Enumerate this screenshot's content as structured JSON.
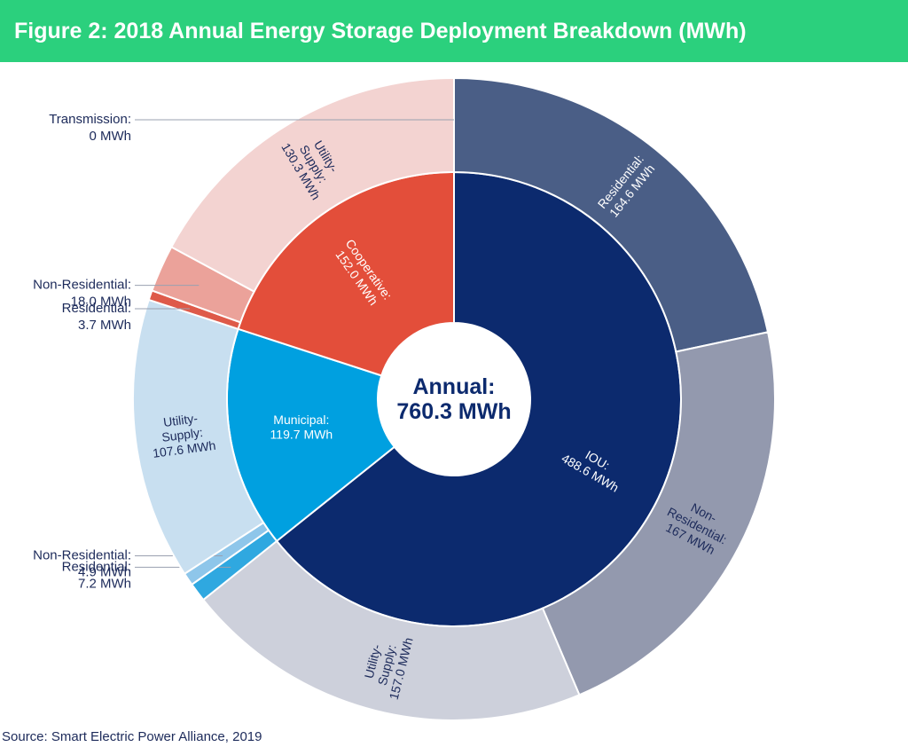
{
  "title": "Figure 2: 2018 Annual Energy Storage Deployment Breakdown (MWh)",
  "source": "Source: Smart Electric Power Alliance, 2019",
  "colors": {
    "header": "#2bd07d",
    "text_dark": "#1c2a5a"
  },
  "chart_data": {
    "type": "sunburst",
    "center_label": [
      "Annual:",
      "760.3 MWh"
    ],
    "total": 760.3,
    "inner_ring": [
      {
        "name": "IOU",
        "value": 488.6,
        "label": [
          "IOU:",
          "488.6 MWh"
        ],
        "color": "#0c2a6e"
      },
      {
        "name": "Municipal",
        "value": 119.7,
        "label": [
          "Municipal:",
          "119.7 MWh"
        ],
        "color": "#00a0e0"
      },
      {
        "name": "Cooperative",
        "value": 152.0,
        "label": [
          "Cooperative:",
          "152.0 MWh"
        ],
        "color": "#e34e3a"
      }
    ],
    "outer_ring": [
      {
        "parent": "IOU",
        "name": "Residential",
        "value": 164.6,
        "label": [
          "Residential:",
          "164.6 MWh"
        ],
        "color": "#4a5e86",
        "label_position": "inside"
      },
      {
        "parent": "IOU",
        "name": "Non-Residential",
        "value": 167.0,
        "label": [
          "Non-",
          "Residential:",
          "167 MWh"
        ],
        "color": "#9399ae",
        "label_position": "inside"
      },
      {
        "parent": "IOU",
        "name": "Utility-Supply",
        "value": 157.0,
        "label": [
          "Utility-",
          "Supply:",
          "157.0 MWh"
        ],
        "color": "#cdd0db",
        "label_position": "inside"
      },
      {
        "parent": "Municipal",
        "name": "Residential",
        "value": 7.2,
        "label": [
          "Residential:",
          "7.2 MWh"
        ],
        "color": "#2fa8e0",
        "label_position": "outside"
      },
      {
        "parent": "Municipal",
        "name": "Non-Residential",
        "value": 4.9,
        "label": [
          "Non-Residential:",
          "4.9 MWh"
        ],
        "color": "#8ec6ea",
        "label_position": "outside"
      },
      {
        "parent": "Municipal",
        "name": "Utility-Supply",
        "value": 107.6,
        "label": [
          "Utility-",
          "Supply:",
          "107.6 MWh"
        ],
        "color": "#c8dff0",
        "label_position": "inside"
      },
      {
        "parent": "Cooperative",
        "name": "Residential",
        "value": 3.7,
        "label": [
          "Residential:",
          "3.7 MWh"
        ],
        "color": "#de5a49",
        "label_position": "outside"
      },
      {
        "parent": "Cooperative",
        "name": "Non-Residential",
        "value": 18.0,
        "label": [
          "Non-Residential:",
          "18.0 MWh"
        ],
        "color": "#eba29a",
        "label_position": "outside"
      },
      {
        "parent": "Cooperative",
        "name": "Utility-Supply",
        "value": 130.3,
        "label": [
          "Utility-",
          "Supply:",
          "130.3 MWh"
        ],
        "color": "#f3d3d1",
        "label_position": "inside"
      },
      {
        "parent": "Cooperative",
        "name": "Transmission",
        "value": 0,
        "label": [
          "Transmission:",
          "0 MWh"
        ],
        "color": "#f3d3d1",
        "label_position": "outside"
      }
    ]
  }
}
